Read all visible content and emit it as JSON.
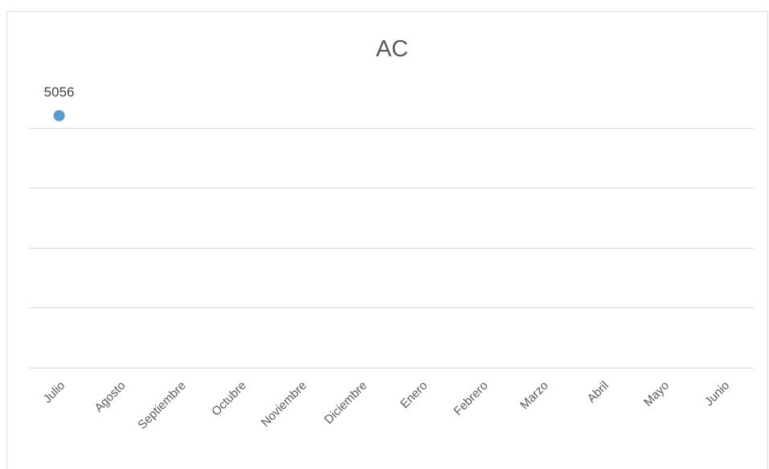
{
  "chart_data": {
    "type": "line",
    "title": "AC",
    "categories": [
      "Julio",
      "Agosto",
      "Septiembre",
      "Octubre",
      "Noviembre",
      "Diciembre",
      "Enero",
      "Febrero",
      "Marzo",
      "Abril",
      "Mayo",
      "Junio"
    ],
    "series": [
      {
        "values": [
          5056,
          null,
          null,
          null,
          null,
          null,
          null,
          null,
          null,
          null,
          null,
          null
        ],
        "color": "#5b9bd5"
      }
    ],
    "data_labels": [
      {
        "category": "Julio",
        "text": "5056"
      }
    ],
    "ylim": [
      5035,
      5059
    ],
    "y_gridlines": [
      5035,
      5040,
      5045,
      5050,
      5055
    ],
    "grid": true,
    "legend": "none",
    "y_axis_labels_visible": false
  }
}
